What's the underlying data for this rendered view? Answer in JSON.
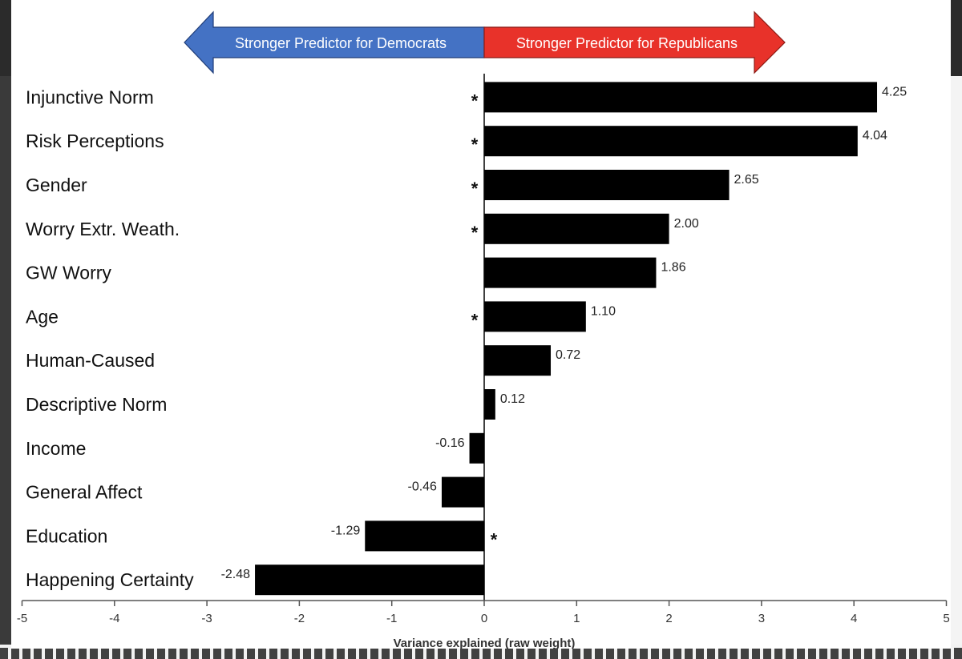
{
  "chart_data": {
    "type": "bar",
    "orientation": "horizontal",
    "categories": [
      "Injunctive Norm",
      "Risk Perceptions",
      "Gender",
      "Worry Extr. Weath.",
      "GW Worry",
      "Age",
      "Human-Caused",
      "Descriptive Norm",
      "Income",
      "General Affect",
      "Education",
      "Happening Certainty"
    ],
    "values": [
      4.25,
      4.04,
      2.65,
      2.0,
      1.86,
      1.1,
      0.72,
      0.12,
      -0.16,
      -0.46,
      -1.29,
      -2.48
    ],
    "value_labels": [
      "4.25",
      "4.04",
      "2.65",
      "2.00",
      "1.86",
      "1.10",
      "0.72",
      "0.12",
      "-0.16",
      "-0.46",
      "-1.29",
      "-2.48"
    ],
    "significant": [
      true,
      true,
      true,
      true,
      false,
      true,
      false,
      false,
      false,
      false,
      true,
      false
    ],
    "significance_marker": "*",
    "xlabel": "Variance explained (raw weight)",
    "xlim": [
      -5,
      5
    ],
    "xticks": [
      -5,
      -4,
      -3,
      -2,
      -1,
      0,
      1,
      2,
      3,
      4,
      5
    ],
    "bar_color": "#000000",
    "grid": false,
    "direction_arrows": {
      "left": {
        "label": "Stronger Predictor for Democrats",
        "color": "#4472c4"
      },
      "right": {
        "label": "Stronger Predictor for Republicans",
        "color": "#e8322a"
      }
    }
  }
}
